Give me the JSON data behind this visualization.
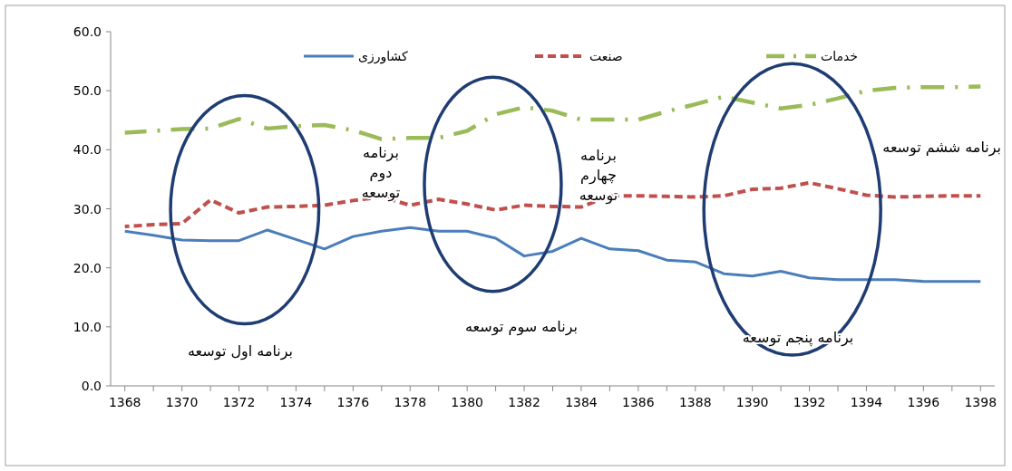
{
  "chart_data": {
    "type": "line",
    "x": [
      1368,
      1369,
      1370,
      1371,
      1372,
      1373,
      1374,
      1375,
      1376,
      1377,
      1378,
      1379,
      1380,
      1381,
      1382,
      1383,
      1384,
      1385,
      1386,
      1387,
      1388,
      1389,
      1390,
      1391,
      1392,
      1393,
      1394,
      1395,
      1396,
      1397,
      1398
    ],
    "series": [
      {
        "name": "کشاورزی",
        "color": "#4a7ebb",
        "line_style": "solid",
        "values": [
          26.2,
          25.5,
          24.7,
          24.6,
          24.6,
          26.4,
          24.8,
          23.2,
          25.3,
          26.2,
          26.8,
          26.2,
          26.2,
          25.0,
          22.0,
          22.8,
          25.0,
          23.2,
          22.9,
          21.3,
          21.0,
          19.0,
          18.6,
          19.4,
          18.3,
          18.0,
          18.0,
          18.0,
          17.7,
          17.7,
          17.7
        ]
      },
      {
        "name": "صنعت",
        "color": "#c0504d",
        "line_style": "dashed",
        "values": [
          27.0,
          27.3,
          27.5,
          31.5,
          29.3,
          30.3,
          30.4,
          30.6,
          31.4,
          32.0,
          30.6,
          31.6,
          30.8,
          29.8,
          30.6,
          30.4,
          30.3,
          32.2,
          32.2,
          32.1,
          32.0,
          32.2,
          33.3,
          33.5,
          34.4,
          33.4,
          32.3,
          32.0,
          32.1,
          32.2,
          32.2
        ]
      },
      {
        "name": "خدمات",
        "color": "#9bbb59",
        "line_style": "dashdot",
        "values": [
          42.9,
          43.2,
          43.5,
          43.6,
          45.2,
          43.6,
          44.0,
          44.2,
          43.3,
          41.8,
          42.0,
          42.0,
          43.2,
          46.0,
          47.2,
          46.6,
          45.1,
          45.1,
          45.1,
          46.5,
          47.7,
          49.0,
          48.0,
          47.0,
          47.6,
          48.7,
          50.0,
          50.5,
          50.6,
          50.6,
          50.7
        ]
      }
    ],
    "xlim": [
      1367.5,
      1398.5
    ],
    "xticks": [
      1368,
      {
        "value": 1369,
        "label": null
      },
      1370,
      {
        "value": 1371,
        "label": null
      },
      1372,
      {
        "value": 1373,
        "label": null
      },
      1374,
      {
        "value": 1375,
        "label": null
      },
      1376,
      {
        "value": 1377,
        "label": null
      },
      1378,
      {
        "value": 1379,
        "label": null
      },
      1380,
      {
        "value": 1381,
        "label": null
      },
      1382,
      {
        "value": 1383,
        "label": null
      },
      1384,
      {
        "value": 1385,
        "label": null
      },
      1386,
      {
        "value": 1387,
        "label": null
      },
      1388,
      {
        "value": 1389,
        "label": null
      },
      1390,
      {
        "value": 1391,
        "label": null
      },
      1392,
      {
        "value": 1393,
        "label": null
      },
      1394,
      {
        "value": 1395,
        "label": null
      },
      1396,
      {
        "value": 1397,
        "label": null
      },
      1398
    ],
    "ylim": [
      0,
      60
    ],
    "yticks": [
      {
        "value": 0,
        "label": "0.0"
      },
      {
        "value": 10,
        "label": "10.0"
      },
      {
        "value": 20,
        "label": "20.0"
      },
      {
        "value": 30,
        "label": "30.0"
      },
      {
        "value": 40,
        "label": "40.0"
      },
      {
        "value": 50,
        "label": "50.0"
      },
      {
        "value": 60,
        "label": "60.0"
      }
    ],
    "legend": "top",
    "annotations": [
      "برنامه اول توسعه",
      "برنامه\nدوم\nتوسعه",
      "برنامه سوم توسعه",
      "برنامه\nچهارم\nتوسعه",
      "برنامه پنجم توسعه",
      "برنامه ششم توسعه"
    ]
  }
}
